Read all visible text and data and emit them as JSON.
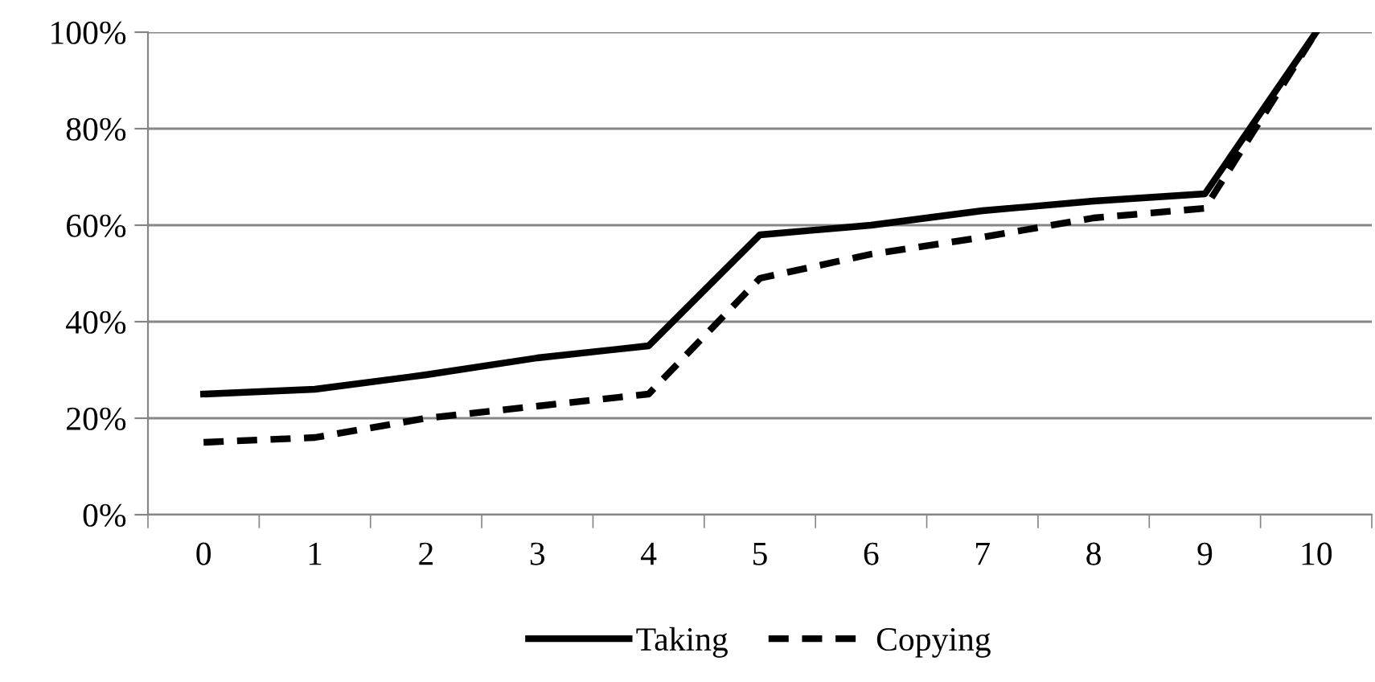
{
  "chart_data": {
    "type": "line",
    "categories": [
      "0",
      "1",
      "2",
      "3",
      "4",
      "5",
      "6",
      "7",
      "8",
      "9",
      "10"
    ],
    "series": [
      {
        "name": "Taking",
        "color": "#000000",
        "line_style": "solid",
        "values": [
          25,
          26,
          29,
          32.5,
          35,
          58,
          60,
          63,
          65,
          66.5,
          100
        ]
      },
      {
        "name": "Copying",
        "color": "#000000",
        "line_style": "dashed",
        "values": [
          15,
          16,
          20,
          22.5,
          25,
          49,
          54,
          57.5,
          61.5,
          63.5,
          100
        ]
      }
    ],
    "ylim": [
      0,
      100
    ],
    "yticks": [
      {
        "value": 0,
        "label": "0%"
      },
      {
        "value": 20,
        "label": "20%"
      },
      {
        "value": 40,
        "label": "40%"
      },
      {
        "value": 60,
        "label": "60%"
      },
      {
        "value": 80,
        "label": "80%"
      },
      {
        "value": 100,
        "label": "100%"
      }
    ],
    "grid": "y",
    "legend": "bottom",
    "marker": "none"
  }
}
